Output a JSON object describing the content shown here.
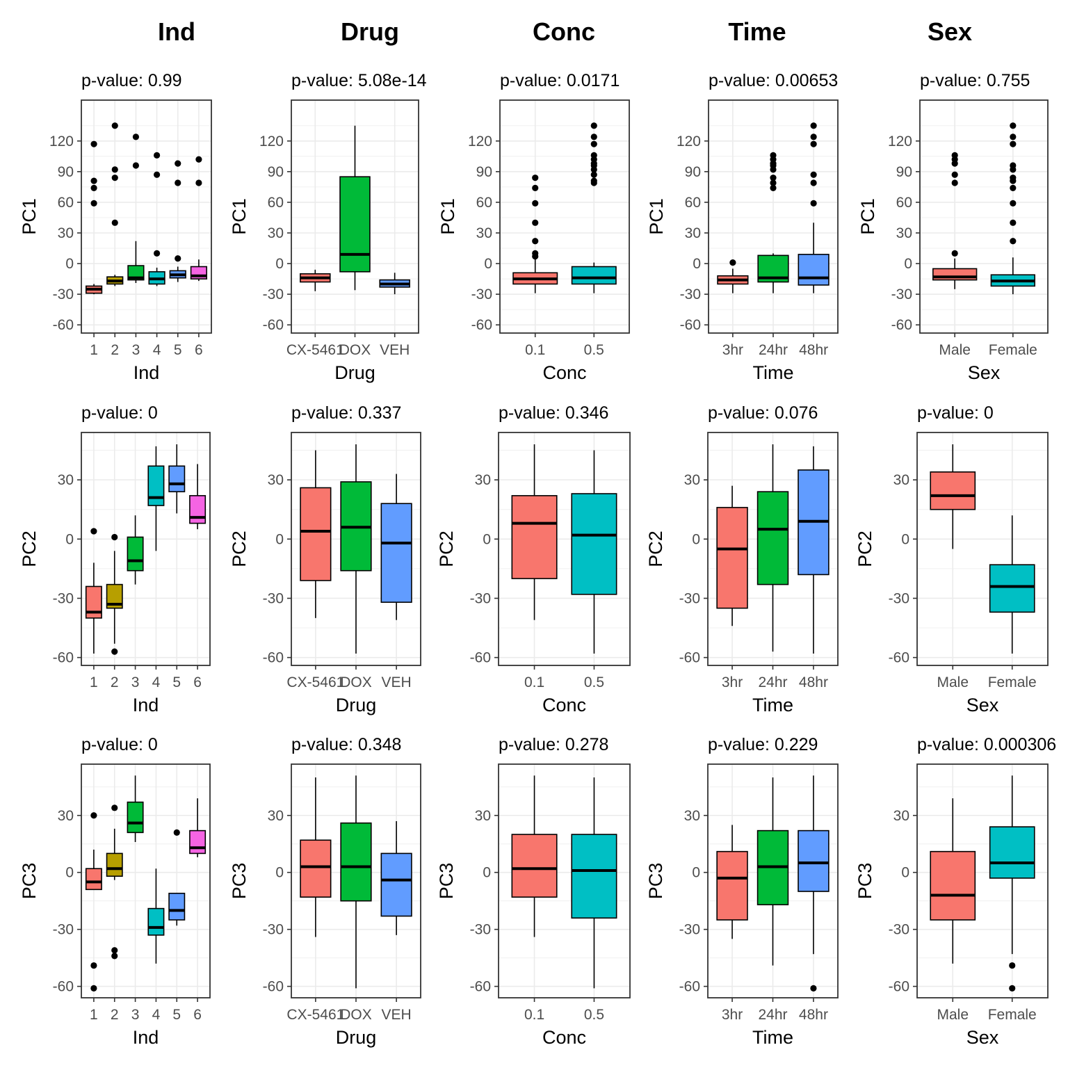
{
  "column_titles": [
    "Ind",
    "Drug",
    "Conc",
    "Time",
    "Sex"
  ],
  "row_ylabels": [
    "PC1",
    "PC2",
    "PC3"
  ],
  "palettes": {
    "Ind": [
      "#F8766D",
      "#B79F00",
      "#00BA38",
      "#00BFC4",
      "#619CFF",
      "#F564E3"
    ],
    "Drug": [
      "#F8766D",
      "#00BA38",
      "#619CFF"
    ],
    "Conc": [
      "#F8766D",
      "#00BFC4"
    ],
    "Time": [
      "#F8766D",
      "#00BA38",
      "#619CFF"
    ],
    "Sex": [
      "#F8766D",
      "#00BFC4"
    ]
  },
  "chart_data": [
    {
      "type": "boxplot",
      "id": "pc1-ind",
      "row": 0,
      "col": 0,
      "title": "p-value: 0.99",
      "xlabel": "Ind",
      "ylabel": "PC1",
      "ylim": [
        -68,
        160
      ],
      "yticks": [
        -60,
        -30,
        0,
        30,
        60,
        90,
        120
      ],
      "categories": [
        "1",
        "2",
        "3",
        "4",
        "5",
        "6"
      ],
      "boxes": [
        {
          "min": -30,
          "q1": -29,
          "median": -25,
          "q3": -22,
          "max": -20,
          "outliers": [
            59,
            74,
            81,
            117
          ]
        },
        {
          "min": -22,
          "q1": -20,
          "median": -17,
          "q3": -13,
          "max": -11,
          "outliers": [
            40,
            84,
            92,
            135
          ]
        },
        {
          "min": -19,
          "q1": -16,
          "median": -14,
          "q3": -2,
          "max": 22,
          "outliers": [
            96,
            124
          ]
        },
        {
          "min": -22,
          "q1": -20,
          "median": -15,
          "q3": -8,
          "max": -4,
          "outliers": [
            10,
            87,
            106
          ]
        },
        {
          "min": -18,
          "q1": -14,
          "median": -11,
          "q3": -7,
          "max": -3,
          "outliers": [
            5,
            79,
            98
          ]
        },
        {
          "min": -17,
          "q1": -15,
          "median": -12,
          "q3": -3,
          "max": 4,
          "outliers": [
            79,
            102
          ]
        }
      ]
    },
    {
      "type": "boxplot",
      "id": "pc1-drug",
      "row": 0,
      "col": 1,
      "title": "p-value: 5.08e-14",
      "xlabel": "Drug",
      "ylabel": "PC1",
      "ylim": [
        -68,
        160
      ],
      "yticks": [
        -60,
        -30,
        0,
        30,
        60,
        90,
        120
      ],
      "categories": [
        "CX-5461",
        "DOX",
        "VEH"
      ],
      "boxes": [
        {
          "min": -27,
          "q1": -18,
          "median": -14,
          "q3": -10,
          "max": -6,
          "outliers": []
        },
        {
          "min": -26,
          "q1": -8,
          "median": 9,
          "q3": 85,
          "max": 135,
          "outliers": []
        },
        {
          "min": -30,
          "q1": -23,
          "median": -20,
          "q3": -16,
          "max": -9,
          "outliers": []
        }
      ]
    },
    {
      "type": "boxplot",
      "id": "pc1-conc",
      "row": 0,
      "col": 2,
      "title": "p-value: 0.0171",
      "xlabel": "Conc",
      "ylabel": "PC1",
      "ylim": [
        -68,
        160
      ],
      "yticks": [
        -60,
        -30,
        0,
        30,
        60,
        90,
        120
      ],
      "categories": [
        "0.1",
        "0.5"
      ],
      "boxes": [
        {
          "min": -29,
          "q1": -20,
          "median": -15,
          "q3": -9,
          "max": 5,
          "outliers": [
            7,
            10,
            22,
            40,
            59,
            74,
            84
          ]
        },
        {
          "min": -29,
          "q1": -20,
          "median": -14,
          "q3": -3,
          "max": 1,
          "outliers": [
            79,
            81,
            87,
            92,
            96,
            98,
            102,
            106,
            117,
            124,
            135
          ]
        }
      ]
    },
    {
      "type": "boxplot",
      "id": "pc1-time",
      "row": 0,
      "col": 3,
      "title": "p-value: 0.00653",
      "xlabel": "Time",
      "ylabel": "PC1",
      "ylim": [
        -68,
        160
      ],
      "yticks": [
        -60,
        -30,
        0,
        30,
        60,
        90,
        120
      ],
      "categories": [
        "3hr",
        "24hr",
        "48hr"
      ],
      "boxes": [
        {
          "min": -29,
          "q1": -20,
          "median": -16,
          "q3": -12,
          "max": -5,
          "outliers": [
            1
          ]
        },
        {
          "min": -29,
          "q1": -18,
          "median": -14,
          "q3": 8,
          "max": 10,
          "outliers": [
            74,
            79,
            84,
            92,
            96,
            98,
            102,
            106
          ]
        },
        {
          "min": -29,
          "q1": -21,
          "median": -14,
          "q3": 9,
          "max": 40,
          "outliers": [
            59,
            79,
            87,
            117,
            124,
            135
          ]
        }
      ]
    },
    {
      "type": "boxplot",
      "id": "pc1-sex",
      "row": 0,
      "col": 4,
      "title": "p-value: 0.755",
      "xlabel": "Sex",
      "ylabel": "PC1",
      "ylim": [
        -68,
        160
      ],
      "yticks": [
        -60,
        -30,
        0,
        30,
        60,
        90,
        120
      ],
      "categories": [
        "Male",
        "Female"
      ],
      "boxes": [
        {
          "min": -25,
          "q1": -16,
          "median": -13,
          "q3": -5,
          "max": 5,
          "outliers": [
            10,
            79,
            87,
            98,
            102,
            106
          ]
        },
        {
          "min": -30,
          "q1": -22,
          "median": -17,
          "q3": -11,
          "max": 6,
          "outliers": [
            22,
            40,
            59,
            74,
            81,
            84,
            92,
            96,
            117,
            124,
            135
          ]
        }
      ]
    },
    {
      "type": "boxplot",
      "id": "pc2-ind",
      "row": 1,
      "col": 0,
      "title": "p-value: 0",
      "xlabel": "Ind",
      "ylabel": "PC2",
      "ylim": [
        -64,
        54
      ],
      "yticks": [
        -60,
        -30,
        0,
        30
      ],
      "categories": [
        "1",
        "2",
        "3",
        "4",
        "5",
        "6"
      ],
      "boxes": [
        {
          "min": -58,
          "q1": -40,
          "median": -37,
          "q3": -24,
          "max": -12,
          "outliers": [
            4
          ]
        },
        {
          "min": -53,
          "q1": -35,
          "median": -33,
          "q3": -23,
          "max": -6,
          "outliers": [
            1,
            -57
          ]
        },
        {
          "min": -23,
          "q1": -16,
          "median": -11,
          "q3": 1,
          "max": 12,
          "outliers": []
        },
        {
          "min": -6,
          "q1": 17,
          "median": 21,
          "q3": 37,
          "max": 47,
          "outliers": []
        },
        {
          "min": 13,
          "q1": 24,
          "median": 28,
          "q3": 37,
          "max": 48,
          "outliers": []
        },
        {
          "min": 5,
          "q1": 8,
          "median": 11,
          "q3": 22,
          "max": 38,
          "outliers": []
        }
      ]
    },
    {
      "type": "boxplot",
      "id": "pc2-drug",
      "row": 1,
      "col": 1,
      "title": "p-value: 0.337",
      "xlabel": "Drug",
      "ylabel": "PC2",
      "ylim": [
        -64,
        54
      ],
      "yticks": [
        -60,
        -30,
        0,
        30
      ],
      "categories": [
        "CX-5461",
        "DOX",
        "VEH"
      ],
      "boxes": [
        {
          "min": -40,
          "q1": -21,
          "median": 4,
          "q3": 26,
          "max": 45,
          "outliers": []
        },
        {
          "min": -58,
          "q1": -16,
          "median": 6,
          "q3": 29,
          "max": 48,
          "outliers": []
        },
        {
          "min": -41,
          "q1": -32,
          "median": -2,
          "q3": 18,
          "max": 33,
          "outliers": []
        }
      ]
    },
    {
      "type": "boxplot",
      "id": "pc2-conc",
      "row": 1,
      "col": 2,
      "title": "p-value: 0.346",
      "xlabel": "Conc",
      "ylabel": "PC2",
      "ylim": [
        -64,
        54
      ],
      "yticks": [
        -60,
        -30,
        0,
        30
      ],
      "categories": [
        "0.1",
        "0.5"
      ],
      "boxes": [
        {
          "min": -41,
          "q1": -20,
          "median": 8,
          "q3": 22,
          "max": 48,
          "outliers": []
        },
        {
          "min": -58,
          "q1": -28,
          "median": 2,
          "q3": 23,
          "max": 45,
          "outliers": []
        }
      ]
    },
    {
      "type": "boxplot",
      "id": "pc2-time",
      "row": 1,
      "col": 3,
      "title": "p-value: 0.076",
      "xlabel": "Time",
      "ylabel": "PC2",
      "ylim": [
        -64,
        54
      ],
      "yticks": [
        -60,
        -30,
        0,
        30
      ],
      "categories": [
        "3hr",
        "24hr",
        "48hr"
      ],
      "boxes": [
        {
          "min": -44,
          "q1": -35,
          "median": -5,
          "q3": 16,
          "max": 27,
          "outliers": []
        },
        {
          "min": -57,
          "q1": -23,
          "median": 5,
          "q3": 24,
          "max": 48,
          "outliers": []
        },
        {
          "min": -58,
          "q1": -18,
          "median": 9,
          "q3": 35,
          "max": 47,
          "outliers": []
        }
      ]
    },
    {
      "type": "boxplot",
      "id": "pc2-sex",
      "row": 1,
      "col": 4,
      "title": "p-value: 0",
      "xlabel": "Sex",
      "ylabel": "PC2",
      "ylim": [
        -64,
        54
      ],
      "yticks": [
        -60,
        -30,
        0,
        30
      ],
      "categories": [
        "Male",
        "Female"
      ],
      "boxes": [
        {
          "min": -5,
          "q1": 15,
          "median": 22,
          "q3": 34,
          "max": 48,
          "outliers": []
        },
        {
          "min": -58,
          "q1": -37,
          "median": -24,
          "q3": -13,
          "max": 12,
          "outliers": []
        }
      ]
    },
    {
      "type": "boxplot",
      "id": "pc3-ind",
      "row": 2,
      "col": 0,
      "title": "p-value: 0",
      "xlabel": "Ind",
      "ylabel": "PC3",
      "ylim": [
        -66,
        57
      ],
      "yticks": [
        -60,
        -30,
        0,
        30
      ],
      "categories": [
        "1",
        "2",
        "3",
        "4",
        "5",
        "6"
      ],
      "boxes": [
        {
          "min": -9,
          "q1": -9,
          "median": -5,
          "q3": 2,
          "max": 12,
          "outliers": [
            30,
            -49,
            -61
          ]
        },
        {
          "min": -4,
          "q1": -2,
          "median": 2,
          "q3": 10,
          "max": 23,
          "outliers": [
            34,
            -41,
            -44
          ]
        },
        {
          "min": 16,
          "q1": 21,
          "median": 26,
          "q3": 37,
          "max": 51,
          "outliers": []
        },
        {
          "min": -48,
          "q1": -33,
          "median": -29,
          "q3": -19,
          "max": 2,
          "outliers": []
        },
        {
          "min": -28,
          "q1": -25,
          "median": -20,
          "q3": -11,
          "max": -11,
          "outliers": [
            21
          ]
        },
        {
          "min": 8,
          "q1": 10,
          "median": 13,
          "q3": 22,
          "max": 39,
          "outliers": []
        }
      ]
    },
    {
      "type": "boxplot",
      "id": "pc3-drug",
      "row": 2,
      "col": 1,
      "title": "p-value: 0.348",
      "xlabel": "Drug",
      "ylabel": "PC3",
      "ylim": [
        -66,
        57
      ],
      "yticks": [
        -60,
        -30,
        0,
        30
      ],
      "categories": [
        "CX-5461",
        "DOX",
        "VEH"
      ],
      "boxes": [
        {
          "min": -34,
          "q1": -13,
          "median": 3,
          "q3": 17,
          "max": 50,
          "outliers": []
        },
        {
          "min": -61,
          "q1": -15,
          "median": 3,
          "q3": 26,
          "max": 51,
          "outliers": []
        },
        {
          "min": -33,
          "q1": -23,
          "median": -4,
          "q3": 10,
          "max": 27,
          "outliers": []
        }
      ]
    },
    {
      "type": "boxplot",
      "id": "pc3-conc",
      "row": 2,
      "col": 2,
      "title": "p-value: 0.278",
      "xlabel": "Conc",
      "ylabel": "PC3",
      "ylim": [
        -66,
        57
      ],
      "yticks": [
        -60,
        -30,
        0,
        30
      ],
      "categories": [
        "0.1",
        "0.5"
      ],
      "boxes": [
        {
          "min": -34,
          "q1": -13,
          "median": 2,
          "q3": 20,
          "max": 51,
          "outliers": []
        },
        {
          "min": -61,
          "q1": -24,
          "median": 1,
          "q3": 20,
          "max": 50,
          "outliers": []
        }
      ]
    },
    {
      "type": "boxplot",
      "id": "pc3-time",
      "row": 2,
      "col": 3,
      "title": "p-value: 0.229",
      "xlabel": "Time",
      "ylabel": "PC3",
      "ylim": [
        -66,
        57
      ],
      "yticks": [
        -60,
        -30,
        0,
        30
      ],
      "categories": [
        "3hr",
        "24hr",
        "48hr"
      ],
      "boxes": [
        {
          "min": -35,
          "q1": -25,
          "median": -3,
          "q3": 11,
          "max": 25,
          "outliers": []
        },
        {
          "min": -49,
          "q1": -17,
          "median": 3,
          "q3": 22,
          "max": 50,
          "outliers": []
        },
        {
          "min": -43,
          "q1": -10,
          "median": 5,
          "q3": 22,
          "max": 51,
          "outliers": [
            -61
          ]
        }
      ]
    },
    {
      "type": "boxplot",
      "id": "pc3-sex",
      "row": 2,
      "col": 4,
      "title": "p-value: 0.000306",
      "xlabel": "Sex",
      "ylabel": "PC3",
      "ylim": [
        -66,
        57
      ],
      "yticks": [
        -60,
        -30,
        0,
        30
      ],
      "categories": [
        "Male",
        "Female"
      ],
      "boxes": [
        {
          "min": -48,
          "q1": -25,
          "median": -12,
          "q3": 11,
          "max": 39,
          "outliers": []
        },
        {
          "min": -43,
          "q1": -3,
          "median": 5,
          "q3": 24,
          "max": 51,
          "outliers": [
            -49,
            -61
          ]
        }
      ]
    }
  ]
}
